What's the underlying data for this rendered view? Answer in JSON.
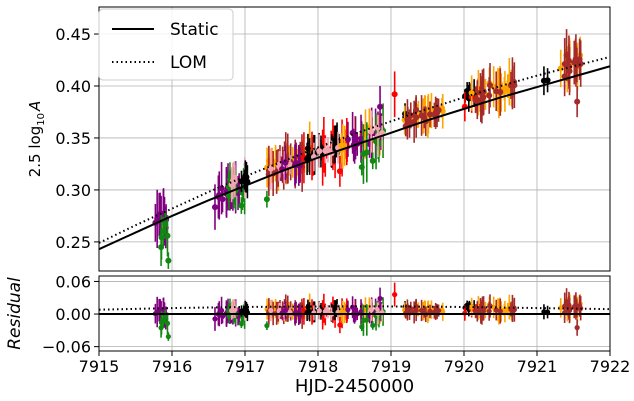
{
  "chart_data": {
    "type": "scatter",
    "xlabel": "HJD-2450000",
    "x_ticks": [
      "7915",
      "7916",
      "7917",
      "7918",
      "7919",
      "7920",
      "7921",
      "7922"
    ],
    "xlim": [
      7915,
      7922
    ],
    "grid": true,
    "legend": {
      "position": "top-left",
      "entries": [
        "Static",
        "LOM"
      ]
    },
    "colors": {
      "black": "#000000",
      "red": "#ff0000",
      "pink": "#f4a6b0",
      "green": "#118811",
      "purple": "#800080",
      "orange": "#ffa500",
      "brown": "#a52a2a"
    },
    "panels": [
      {
        "name": "main",
        "ylabel_prefix": "2.5 log",
        "ylabel_sub": "10",
        "ylabel_var": "A",
        "ylim": [
          0.222,
          0.476
        ],
        "y_ticks": [
          {
            "value": 0.25,
            "label": "0.25"
          },
          {
            "value": 0.3,
            "label": "0.30"
          },
          {
            "value": 0.35,
            "label": "0.35"
          },
          {
            "value": 0.4,
            "label": "0.40"
          },
          {
            "value": 0.45,
            "label": "0.45"
          }
        ],
        "series": [
          {
            "name": "Static",
            "style": "solid",
            "color": "#000000",
            "x": [
              7915.0,
              7915.5,
              7916.0,
              7916.5,
              7917.0,
              7917.5,
              7918.0,
              7918.5,
              7919.0,
              7919.5,
              7920.0,
              7920.5,
              7921.0,
              7921.5,
              7922.0
            ],
            "y": [
              0.243,
              0.259,
              0.275,
              0.29,
              0.304,
              0.318,
              0.331,
              0.343,
              0.355,
              0.367,
              0.378,
              0.389,
              0.399,
              0.409,
              0.419
            ]
          },
          {
            "name": "LOM",
            "style": "dotted",
            "color": "#000000",
            "x": [
              7915.0,
              7915.5,
              7916.0,
              7916.5,
              7917.0,
              7917.5,
              7918.0,
              7918.5,
              7919.0,
              7919.5,
              7920.0,
              7920.5,
              7921.0,
              7921.5,
              7922.0
            ],
            "y": [
              0.249,
              0.266,
              0.282,
              0.298,
              0.313,
              0.327,
              0.341,
              0.354,
              0.366,
              0.378,
              0.389,
              0.4,
              0.41,
              0.419,
              0.428
            ]
          }
        ]
      },
      {
        "name": "residual",
        "ylabel": "Residual",
        "ylim": [
          -0.068,
          0.07
        ],
        "y_ticks": [
          {
            "value": 0.06,
            "label": "0.06"
          },
          {
            "value": 0.0,
            "label": "0.00"
          },
          {
            "value": -0.06,
            "label": "−0.06"
          }
        ],
        "series": [
          {
            "name": "Static",
            "style": "solid",
            "color": "#000000",
            "x": [
              7915.0,
              7922.0
            ],
            "y": [
              0.0,
              0.0
            ]
          },
          {
            "name": "LOM",
            "style": "dotted",
            "color": "#000000",
            "x": [
              7915.0,
              7916.0,
              7917.0,
              7918.0,
              7919.0,
              7920.0,
              7921.0,
              7922.0
            ],
            "y": [
              0.008,
              0.011,
              0.013,
              0.014,
              0.014,
              0.013,
              0.011,
              0.009
            ]
          }
        ]
      }
    ],
    "point_groups": [
      {
        "color": "purple",
        "x_min": 7915.75,
        "x_max": 7915.95,
        "trend_offset": 0.0,
        "scatter": 0.015,
        "n": 10,
        "err": 0.022
      },
      {
        "color": "green",
        "x_min": 7915.8,
        "x_max": 7916.0,
        "trend_offset": -0.015,
        "scatter": 0.022,
        "n": 5,
        "err": 0.022
      },
      {
        "color": "purple",
        "x_min": 7916.55,
        "x_max": 7916.95,
        "trend_offset": 0.0,
        "scatter": 0.012,
        "n": 20,
        "err": 0.018
      },
      {
        "color": "green",
        "x_min": 7916.7,
        "x_max": 7917.0,
        "trend_offset": 0.002,
        "scatter": 0.015,
        "n": 9,
        "err": 0.018
      },
      {
        "color": "pink",
        "x_min": 7916.8,
        "x_max": 7917.0,
        "trend_offset": 0.005,
        "scatter": 0.01,
        "n": 5,
        "err": 0.015
      },
      {
        "color": "black",
        "x_min": 7916.9,
        "x_max": 7917.05,
        "trend_offset": 0.008,
        "scatter": 0.008,
        "n": 6,
        "err": 0.012
      },
      {
        "color": "orange",
        "x_min": 7917.3,
        "x_max": 7917.9,
        "trend_offset": 0.006,
        "scatter": 0.012,
        "n": 22,
        "err": 0.018
      },
      {
        "color": "brown",
        "x_min": 7917.3,
        "x_max": 7917.9,
        "trend_offset": 0.005,
        "scatter": 0.012,
        "n": 22,
        "err": 0.018
      },
      {
        "color": "pink",
        "x_min": 7917.3,
        "x_max": 7917.7,
        "trend_offset": 0.004,
        "scatter": 0.01,
        "n": 6,
        "err": 0.015
      },
      {
        "color": "purple",
        "x_min": 7917.5,
        "x_max": 7917.8,
        "trend_offset": 0.002,
        "scatter": 0.01,
        "n": 6,
        "err": 0.015
      },
      {
        "color": "red",
        "x_min": 7917.8,
        "x_max": 7918.4,
        "trend_offset": 0.003,
        "scatter": 0.012,
        "n": 15,
        "err": 0.02
      },
      {
        "color": "black",
        "x_min": 7917.85,
        "x_max": 7918.3,
        "trend_offset": 0.006,
        "scatter": 0.01,
        "n": 16,
        "err": 0.015
      },
      {
        "color": "pink",
        "x_min": 7917.9,
        "x_max": 7918.3,
        "trend_offset": 0.005,
        "scatter": 0.01,
        "n": 6,
        "err": 0.015
      },
      {
        "color": "orange",
        "x_min": 7918.3,
        "x_max": 7918.9,
        "trend_offset": 0.006,
        "scatter": 0.012,
        "n": 14,
        "err": 0.018
      },
      {
        "color": "purple",
        "x_min": 7918.4,
        "x_max": 7918.9,
        "trend_offset": 0.004,
        "scatter": 0.012,
        "n": 14,
        "err": 0.018
      },
      {
        "color": "green",
        "x_min": 7918.6,
        "x_max": 7918.9,
        "trend_offset": -0.005,
        "scatter": 0.015,
        "n": 6,
        "err": 0.022
      },
      {
        "color": "pink",
        "x_min": 7918.7,
        "x_max": 7918.9,
        "trend_offset": 0.005,
        "scatter": 0.01,
        "n": 4,
        "err": 0.015
      },
      {
        "color": "black",
        "x_min": 7919.15,
        "x_max": 7919.35,
        "trend_offset": 0.012,
        "scatter": 0.008,
        "n": 5,
        "err": 0.01
      },
      {
        "color": "orange",
        "x_min": 7919.15,
        "x_max": 7919.75,
        "trend_offset": 0.006,
        "scatter": 0.01,
        "n": 14,
        "err": 0.015
      },
      {
        "color": "brown",
        "x_min": 7919.2,
        "x_max": 7919.7,
        "trend_offset": 0.005,
        "scatter": 0.01,
        "n": 16,
        "err": 0.015
      },
      {
        "color": "black",
        "x_min": 7920.0,
        "x_max": 7920.15,
        "trend_offset": 0.012,
        "scatter": 0.007,
        "n": 6,
        "err": 0.01
      },
      {
        "color": "red",
        "x_min": 7920.0,
        "x_max": 7920.2,
        "trend_offset": 0.01,
        "scatter": 0.01,
        "n": 4,
        "err": 0.015
      },
      {
        "color": "orange",
        "x_min": 7920.1,
        "x_max": 7920.7,
        "trend_offset": 0.01,
        "scatter": 0.012,
        "n": 16,
        "err": 0.018
      },
      {
        "color": "brown",
        "x_min": 7920.15,
        "x_max": 7920.7,
        "trend_offset": 0.009,
        "scatter": 0.012,
        "n": 16,
        "err": 0.018
      },
      {
        "color": "black",
        "x_min": 7921.05,
        "x_max": 7921.15,
        "trend_offset": 0.005,
        "scatter": 0.003,
        "n": 2,
        "err": 0.012
      },
      {
        "color": "orange",
        "x_min": 7921.3,
        "x_max": 7921.65,
        "trend_offset": 0.012,
        "scatter": 0.012,
        "n": 12,
        "err": 0.02
      },
      {
        "color": "brown",
        "x_min": 7921.3,
        "x_max": 7921.6,
        "trend_offset": 0.012,
        "scatter": 0.013,
        "n": 14,
        "err": 0.02
      }
    ],
    "outliers": [
      {
        "color": "green",
        "x": 7915.95,
        "y": 0.232,
        "err": 0.008
      },
      {
        "color": "green",
        "x": 7916.95,
        "y": 0.285,
        "err": 0.008
      },
      {
        "color": "green",
        "x": 7917.3,
        "y": 0.291,
        "err": 0.008
      },
      {
        "color": "green",
        "x": 7918.6,
        "y": 0.322,
        "err": 0.008
      },
      {
        "color": "green",
        "x": 7918.75,
        "y": 0.328,
        "err": 0.008
      },
      {
        "color": "purple",
        "x": 7918.85,
        "y": 0.38,
        "err": 0.02
      },
      {
        "color": "red",
        "x": 7918.3,
        "y": 0.318,
        "err": 0.015
      },
      {
        "color": "red",
        "x": 7919.05,
        "y": 0.392,
        "err": 0.022
      },
      {
        "color": "brown",
        "x": 7921.55,
        "y": 0.385,
        "err": 0.015
      }
    ]
  }
}
